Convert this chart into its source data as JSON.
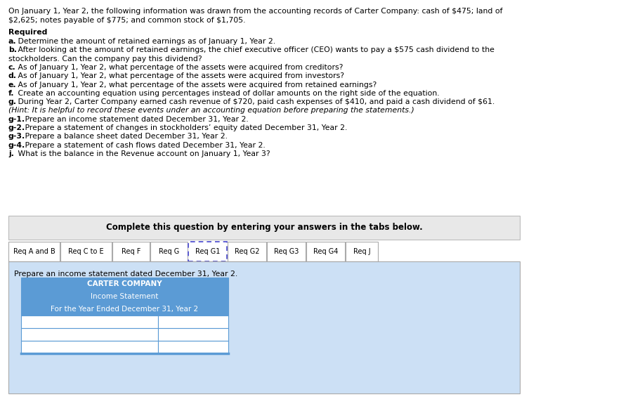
{
  "background_color": "#ffffff",
  "text_color": "#000000",
  "para_line1": "On January 1, Year 2, the following information was drawn from the accounting records of Carter Company: cash of $475; land of",
  "para_line2": "$2,625; notes payable of $775; and common stock of $1,705.",
  "required_label": "Required",
  "required_items": [
    {
      "bold": "a.",
      "text": " Determine the amount of retained earnings as of January 1, Year 2.",
      "extra": ""
    },
    {
      "bold": "b.",
      "text": " After looking at the amount of retained earnings, the chief executive officer (CEO) wants to pay a $575 cash dividend to the",
      "extra": "stockholders. Can the company pay this dividend?"
    },
    {
      "bold": "c.",
      "text": " As of January 1, Year 2, what percentage of the assets were acquired from creditors?",
      "extra": ""
    },
    {
      "bold": "d.",
      "text": " As of January 1, Year 2, what percentage of the assets were acquired from investors?",
      "extra": ""
    },
    {
      "bold": "e.",
      "text": " As of January 1, Year 2, what percentage of the assets were acquired from retained earnings?",
      "extra": ""
    },
    {
      "bold": "f.",
      "text": " Create an accounting equation using percentages instead of dollar amounts on the right side of the equation.",
      "extra": ""
    },
    {
      "bold": "g.",
      "text": " During Year 2, Carter Company earned cash revenue of $720, paid cash expenses of $410, and paid a cash dividend of $61.",
      "extra": "(Hint: It is helpful to record these events under an accounting equation before preparing the statements.)"
    },
    {
      "bold": "g-1.",
      "text": " Prepare an income statement dated December 31, Year 2.",
      "extra": ""
    },
    {
      "bold": "g-2.",
      "text": " Prepare a statement of changes in stockholders' equity dated December 31, Year 2.",
      "extra": ""
    },
    {
      "bold": "g-3.",
      "text": " Prepare a balance sheet dated December 31, Year 2.",
      "extra": ""
    },
    {
      "bold": "g-4.",
      "text": " Prepare a statement of cash flows dated December 31, Year 2.",
      "extra": ""
    },
    {
      "bold": "j.",
      "text": " What is the balance in the Revenue account on January 1, Year 3?",
      "extra": ""
    }
  ],
  "box_bg": "#e8e8e8",
  "box_border": "#bbbbbb",
  "box_text": "Complete this question by entering your answers in the tabs below.",
  "tabs": [
    "Req A and B",
    "Req C to E",
    "Req F",
    "Req G",
    "Req G1",
    "Req G2",
    "Req G3",
    "Req G4",
    "Req J"
  ],
  "active_tab_index": 4,
  "active_tab_border": "#4444cc",
  "tab_bg": "#ffffff",
  "tab_border": "#aaaaaa",
  "tab_area_bg": "#cce0f5",
  "tab_area_border": "#aaaaaa",
  "instruction_text": "Prepare an income statement dated December 31, Year 2.",
  "table_header_bg": "#5b9bd5",
  "table_header_text_color": "#ffffff",
  "table_row_bg": "#ffffff",
  "table_border_color": "#5b9bd5",
  "table_title1": "CARTER COMPANY",
  "table_title2": "Income Statement",
  "table_title3": "For the Year Ended December 31, Year 2",
  "table_num_rows": 3,
  "font_size": 7.8,
  "tab_font_size": 7.0
}
